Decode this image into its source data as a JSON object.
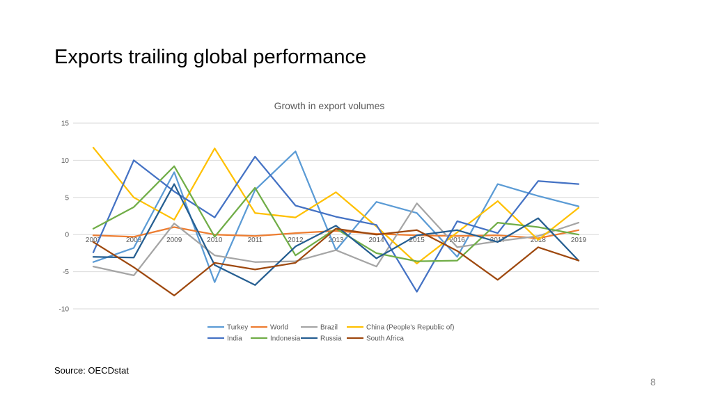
{
  "slide": {
    "title": "Exports trailing global performance",
    "source": "Source: OECDstat",
    "page_number": "8"
  },
  "chart_data": {
    "type": "line",
    "title": "Growth in export volumes",
    "xlabel": "",
    "ylabel": "",
    "categories": [
      "2007",
      "2008",
      "2009",
      "2010",
      "2011",
      "2012",
      "2013",
      "2014",
      "2015",
      "2016",
      "2017",
      "2018",
      "2019"
    ],
    "ylim": [
      -10,
      15
    ],
    "yticks": [
      15,
      10,
      5,
      0,
      -5,
      -10
    ],
    "grid": true,
    "legend_position": "bottom",
    "series": [
      {
        "name": "Turkey",
        "color": "#5B9BD5",
        "values": [
          -3.7,
          -1.8,
          8.4,
          -6.4,
          6.0,
          11.2,
          -2.1,
          4.4,
          2.9,
          -3.0,
          6.8,
          5.2,
          3.8
        ]
      },
      {
        "name": "World",
        "color": "#ED7D31",
        "values": [
          -0.1,
          -0.3,
          1.0,
          0.0,
          -0.2,
          0.2,
          0.5,
          0.1,
          -0.1,
          -0.2,
          -0.1,
          -0.5,
          0.6
        ]
      },
      {
        "name": "Brazil",
        "color": "#A5A5A5",
        "values": [
          -4.3,
          -5.5,
          1.5,
          -2.8,
          -3.7,
          -3.6,
          -2.1,
          -4.3,
          4.2,
          -1.7,
          -0.9,
          -0.2,
          1.6
        ]
      },
      {
        "name": "China (People's Republic of)",
        "color": "#FFC000",
        "values": [
          11.7,
          5.0,
          2.0,
          11.6,
          2.9,
          2.3,
          5.7,
          1.1,
          -3.9,
          0.3,
          4.5,
          -0.7,
          3.6
        ]
      },
      {
        "name": "India",
        "color": "#4472C4",
        "values": [
          -2.4,
          10.0,
          5.8,
          2.3,
          10.5,
          3.9,
          2.4,
          1.3,
          -7.7,
          1.8,
          0.2,
          7.2,
          6.8
        ]
      },
      {
        "name": "Indonesia",
        "color": "#70AD47",
        "values": [
          0.8,
          3.7,
          9.2,
          -0.3,
          6.3,
          -2.8,
          0.8,
          -2.5,
          -3.6,
          -3.5,
          1.6,
          1.0,
          0.0
        ]
      },
      {
        "name": "Russia",
        "color": "#255E91",
        "values": [
          -3.0,
          -3.1,
          6.8,
          -4.1,
          -6.8,
          -1.6,
          1.2,
          -3.2,
          -0.1,
          0.6,
          -1.0,
          2.2,
          -3.5
        ]
      },
      {
        "name": "South Africa",
        "color": "#9E480E",
        "values": [
          -1.0,
          -4.4,
          -8.2,
          -3.8,
          -4.7,
          -3.8,
          0.8,
          0.0,
          0.6,
          -2.2,
          -6.1,
          -1.7,
          -3.5
        ]
      }
    ]
  }
}
